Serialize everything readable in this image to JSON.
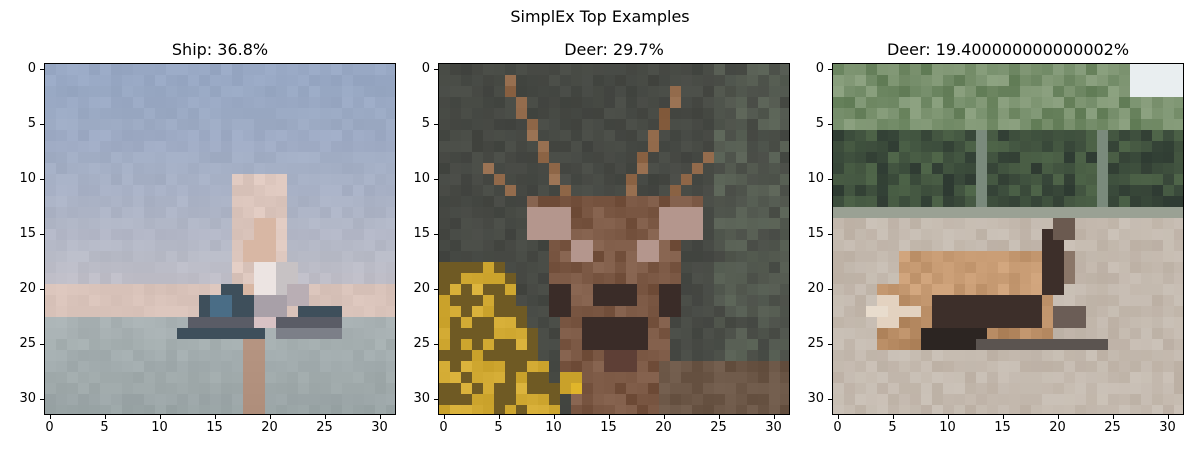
{
  "figure": {
    "title": "SimplEx Top Examples"
  },
  "panels": [
    {
      "title": "Ship: 36.8%",
      "label": "Ship",
      "percent": 36.8,
      "image_subject": "ship on calm water under pale blue sky",
      "palette": {
        "sky": "#98a8c4",
        "sky_low": "#c2c0c8",
        "horizon": "#d9c3ba",
        "water": "#a9b2b4",
        "water_dark": "#98a3a4",
        "ship_dark": "#3e4f5b",
        "ship_blue": "#4a6d86",
        "ship_light": "#ece4e2",
        "ship_tan": "#d8b7a4"
      }
    },
    {
      "title": "Deer: 29.7%",
      "label": "Deer",
      "percent": 29.7,
      "image_subject": "close-up deer head with antlers and yellow foliage",
      "palette": {
        "bg": "#4d504a",
        "bg_dark": "#3c3e3a",
        "antler": "#8e6647",
        "face": "#7b5844",
        "face_light": "#b4968d",
        "eye_dark": "#3a2c28",
        "foliage": "#c9a12a",
        "foliage_dark": "#6f5a24",
        "body": "#6b5646"
      }
    },
    {
      "title": "Deer: 19.400000000000002%",
      "label": "Deer",
      "percent": 19.4,
      "image_subject": "deer lying on ground in front of green trees",
      "palette": {
        "sky": "#e9eef0",
        "tree": "#5f7a54",
        "tree_light": "#8ea382",
        "tree_dark": "#2e3a32",
        "ground": "#bcb0a4",
        "ground_light": "#cbc2b8",
        "deer_tan": "#c69a72",
        "deer_dark": "#3d2f2a",
        "deer_light": "#e3d2c0"
      }
    }
  ],
  "axes": {
    "ticks": [
      0,
      5,
      10,
      15,
      20,
      25,
      30
    ],
    "tick_labels": [
      "0",
      "5",
      "10",
      "15",
      "20",
      "25",
      "30"
    ],
    "extent": [
      -0.5,
      31.5
    ],
    "y_inverted": true
  }
}
